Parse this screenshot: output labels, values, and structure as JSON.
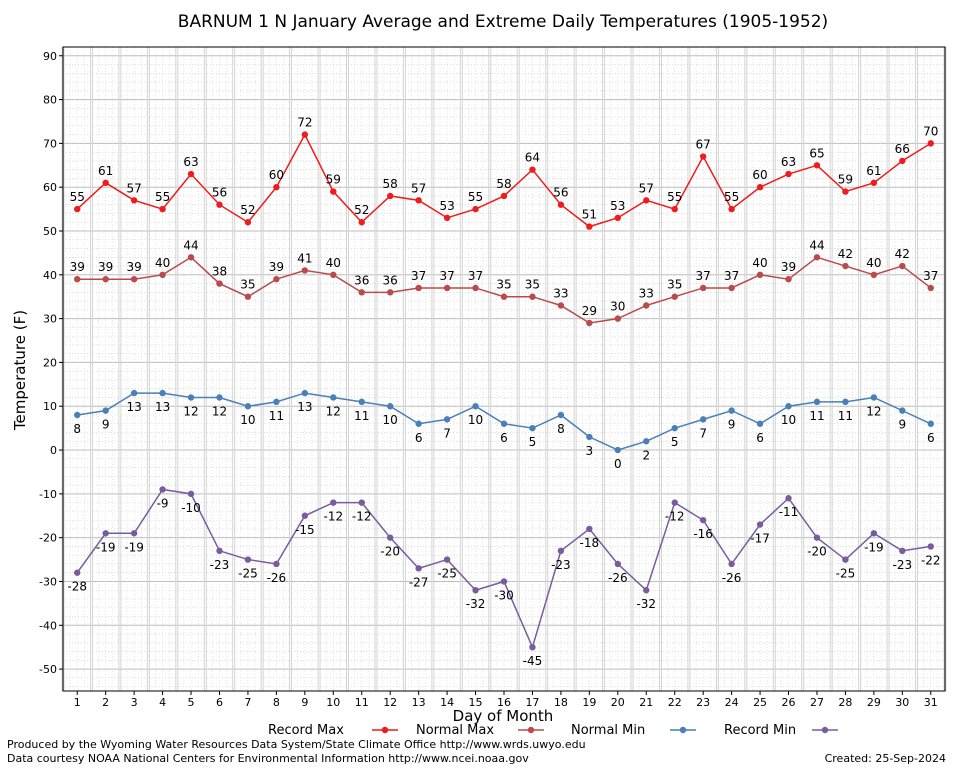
{
  "chart_data": {
    "type": "line",
    "title": "BARNUM 1 N January Average and Extreme Daily Temperatures (1905-1952)",
    "xlabel": "Day of Month",
    "ylabel": "Temperature (F)",
    "ylim": [
      -55,
      92
    ],
    "yticks": [
      -50,
      -40,
      -30,
      -20,
      -10,
      0,
      10,
      20,
      30,
      40,
      50,
      60,
      70,
      80,
      90
    ],
    "x": [
      1,
      2,
      3,
      4,
      5,
      6,
      7,
      8,
      9,
      10,
      11,
      12,
      13,
      14,
      15,
      16,
      17,
      18,
      19,
      20,
      21,
      22,
      23,
      24,
      25,
      26,
      27,
      28,
      29,
      30,
      31
    ],
    "grid": true,
    "legend_position": "bottom",
    "series": [
      {
        "name": "Record Max",
        "color": "#ee1c1c",
        "values": [
          55,
          61,
          57,
          55,
          63,
          56,
          52,
          60,
          72,
          59,
          52,
          58,
          57,
          53,
          55,
          58,
          64,
          56,
          51,
          53,
          57,
          55,
          67,
          55,
          60,
          63,
          65,
          59,
          61,
          66,
          70
        ],
        "label_pos": "above"
      },
      {
        "name": "Normal Max",
        "color": "#b94b4b",
        "values": [
          39,
          39,
          39,
          40,
          44,
          38,
          35,
          39,
          41,
          40,
          36,
          36,
          37,
          37,
          37,
          35,
          35,
          33,
          29,
          30,
          33,
          35,
          37,
          37,
          40,
          39,
          44,
          42,
          40,
          42,
          37
        ],
        "label_pos": "above"
      },
      {
        "name": "Normal Min",
        "color": "#4a7fb7",
        "values": [
          8,
          9,
          13,
          13,
          12,
          12,
          10,
          11,
          13,
          12,
          11,
          10,
          6,
          7,
          10,
          6,
          5,
          8,
          3,
          0,
          2,
          5,
          7,
          9,
          6,
          10,
          11,
          11,
          12,
          9,
          6
        ],
        "label_pos": "below"
      },
      {
        "name": "Record Min",
        "color": "#7a5c9e",
        "values": [
          -28,
          -19,
          -19,
          -9,
          -10,
          -23,
          -25,
          -26,
          -15,
          -12,
          -12,
          -20,
          -27,
          -25,
          -32,
          -30,
          -45,
          -23,
          -18,
          -26,
          -32,
          -12,
          -16,
          -26,
          -17,
          -11,
          -20,
          -25,
          -19,
          -23,
          -22
        ],
        "label_pos": "below"
      }
    ]
  },
  "footer": {
    "left_line1": "Produced by the Wyoming Water Resources Data System/State Climate Office http://www.wrds.uwyo.edu",
    "left_line2": "Data courtesy NOAA National Centers for Environmental Information http://www.ncei.noaa.gov",
    "created": "Created:  25-Sep-2024"
  }
}
